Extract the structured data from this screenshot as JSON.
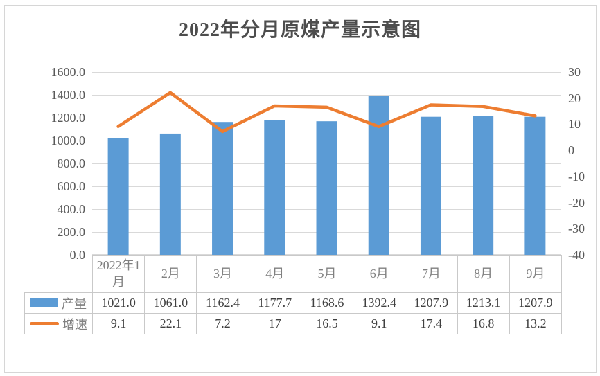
{
  "title": "2022年分月原煤产量示意图",
  "colors": {
    "bar": "#5B9BD5",
    "line": "#ED7D31",
    "gridline": "#d9d9d9",
    "table_border": "#c9c9c9",
    "axis_text": "#595959",
    "header_text": "#808080",
    "value_text": "#404040",
    "title_text": "#4d4d4d",
    "frame_border": "#d6d6d6"
  },
  "chart_data": {
    "type": "combo-bar-line",
    "title": "2022年分月原煤产量示意图",
    "categories": [
      "2022年1月",
      "2月",
      "3月",
      "4月",
      "5月",
      "6月",
      "7月",
      "8月",
      "9月"
    ],
    "series": [
      {
        "name": "产量",
        "type": "bar",
        "axis": "left",
        "color": "#5B9BD5",
        "values": [
          1021.0,
          1061.0,
          1162.4,
          1177.7,
          1168.6,
          1392.4,
          1207.9,
          1213.1,
          1207.9
        ],
        "display_values": [
          "1021.0",
          "1061.0",
          "1162.4",
          "1177.7",
          "1168.6",
          "1392.4",
          "1207.9",
          "1213.1",
          "1207.9"
        ]
      },
      {
        "name": "增速",
        "type": "line",
        "axis": "right",
        "color": "#ED7D31",
        "values": [
          9.1,
          22.1,
          7.2,
          17,
          16.5,
          9.1,
          17.4,
          16.8,
          13.2
        ],
        "display_values": [
          "9.1",
          "22.1",
          "7.2",
          "17",
          "16.5",
          "9.1",
          "17.4",
          "16.8",
          "13.2"
        ]
      }
    ],
    "left_axis": {
      "min": 0,
      "max": 1600,
      "step": 200,
      "labels": [
        "1600.0",
        "1400.0",
        "1200.0",
        "1000.0",
        "800.0",
        "600.0",
        "400.0",
        "200.0",
        "0.0"
      ]
    },
    "right_axis": {
      "min": -40,
      "max": 30,
      "step": 10,
      "labels": [
        "30",
        "20",
        "10",
        "0",
        "-10",
        "-20",
        "-30",
        "-40"
      ]
    },
    "grid": true,
    "legend_position": "table-left"
  }
}
